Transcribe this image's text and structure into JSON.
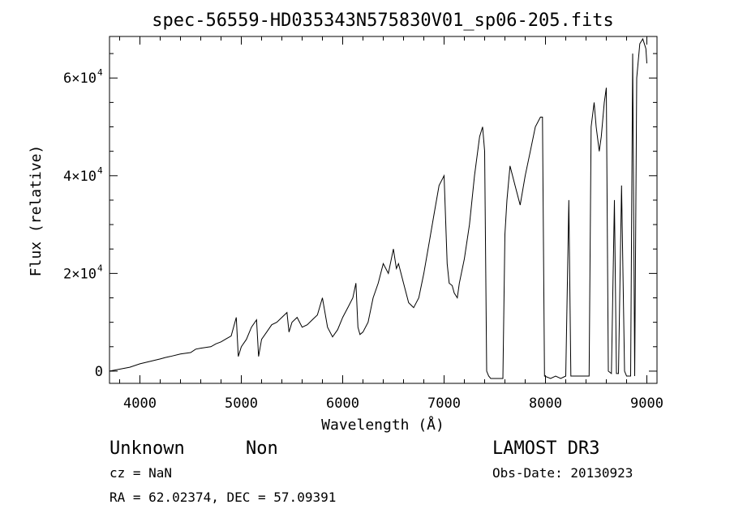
{
  "chart_data": {
    "type": "line",
    "title": "spec-56559-HD035343N575830V01_sp06-205.fits",
    "xlabel": "Wavelength (Å)",
    "ylabel": "Flux (relative)",
    "xlim": [
      3700,
      9100
    ],
    "ylim": [
      -2500,
      68500
    ],
    "xticks": [
      {
        "value": 4000,
        "label": "4000"
      },
      {
        "value": 5000,
        "label": "5000"
      },
      {
        "value": 6000,
        "label": "6000"
      },
      {
        "value": 7000,
        "label": "7000"
      },
      {
        "value": 8000,
        "label": "8000"
      },
      {
        "value": 9000,
        "label": "9000"
      }
    ],
    "yticks": [
      {
        "value": 0,
        "base": "0",
        "exp": ""
      },
      {
        "value": 20000,
        "base": "2×10",
        "exp": "4"
      },
      {
        "value": 40000,
        "base": "4×10",
        "exp": "4"
      },
      {
        "value": 60000,
        "base": "6×10",
        "exp": "4"
      }
    ],
    "series": [
      {
        "x": [
          3700,
          3800,
          3900,
          4000,
          4100,
          4200,
          4250,
          4300,
          4400,
          4500,
          4550,
          4600,
          4700,
          4750,
          4800,
          4850,
          4900,
          4950,
          4970,
          5000,
          5050,
          5100,
          5150,
          5170,
          5200,
          5250,
          5300,
          5350,
          5400,
          5450,
          5470,
          5500,
          5550,
          5600,
          5650,
          5700,
          5750,
          5800,
          5850,
          5900,
          5950,
          6000,
          6050,
          6100,
          6130,
          6150,
          6170,
          6200,
          6250,
          6300,
          6350,
          6400,
          6450,
          6500,
          6530,
          6550,
          6600,
          6650,
          6700,
          6750,
          6800,
          6850,
          6900,
          6950,
          7000,
          7030,
          7050,
          7080,
          7100,
          7130,
          7150,
          7200,
          7250,
          7300,
          7350,
          7380,
          7400,
          7420,
          7440,
          7460,
          7500,
          7550,
          7580,
          7600,
          7620,
          7650,
          7700,
          7750,
          7800,
          7850,
          7900,
          7950,
          7970,
          7990,
          8050,
          8100,
          8150,
          8200,
          8230,
          8250,
          8300,
          8350,
          8400,
          8430,
          8450,
          8480,
          8500,
          8530,
          8550,
          8580,
          8600,
          8620,
          8650,
          8680,
          8700,
          8720,
          8750,
          8780,
          8800,
          8820,
          8840,
          8860,
          8880,
          8900,
          8930,
          8960,
          8990,
          9000
        ],
        "y": [
          0,
          400,
          800,
          1500,
          2000,
          2500,
          2800,
          3000,
          3500,
          3800,
          4500,
          4700,
          5000,
          5600,
          6000,
          6600,
          7200,
          11000,
          3000,
          5000,
          6500,
          9000,
          10500,
          3000,
          6500,
          8000,
          9500,
          10000,
          11000,
          12000,
          8000,
          10000,
          11000,
          9000,
          9500,
          10500,
          11500,
          15000,
          9000,
          7000,
          8500,
          11000,
          13000,
          15000,
          18000,
          9000,
          7500,
          8000,
          10000,
          15000,
          18000,
          22000,
          20000,
          25000,
          21000,
          22000,
          18000,
          14000,
          13000,
          15000,
          20000,
          26000,
          32000,
          38000,
          40000,
          22000,
          18000,
          17500,
          16000,
          15000,
          18000,
          23000,
          30000,
          40000,
          48000,
          50000,
          45000,
          0,
          -1000,
          -1500,
          -1500,
          -1500,
          -1500,
          28000,
          35000,
          42000,
          38000,
          34000,
          40000,
          45000,
          50000,
          52000,
          52000,
          -1000,
          -1500,
          -1000,
          -1500,
          -1000,
          35000,
          -1000,
          -1000,
          -1000,
          -1000,
          -1000,
          50000,
          55000,
          50000,
          45000,
          48000,
          55000,
          58000,
          0,
          -500,
          35000,
          -500,
          -500,
          38000,
          0,
          -1000,
          -1000,
          -1000,
          65000,
          -1000,
          60000,
          67000,
          68000,
          66000,
          63000
        ]
      }
    ]
  },
  "footer": {
    "object_class": "Unknown",
    "object_subclass": "Non",
    "survey": "LAMOST DR3",
    "redshift": "cz = NaN",
    "obs_date": "Obs-Date: 20130923",
    "coords": "RA =  62.02374, DEC =  57.09391"
  }
}
